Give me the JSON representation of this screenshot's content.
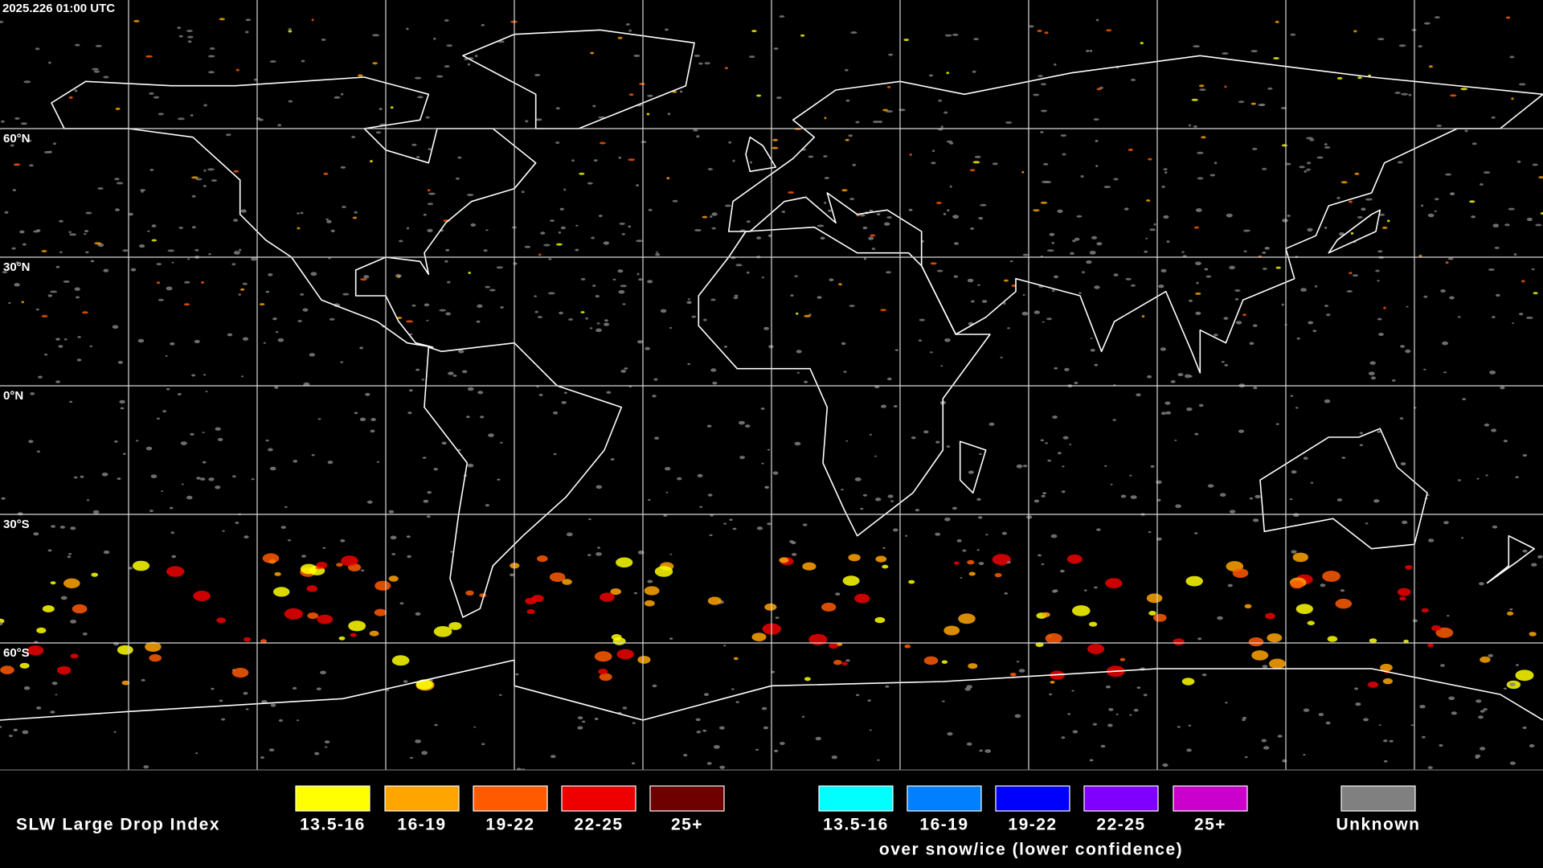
{
  "header": {
    "timestamp": "2025.226 01:00 UTC"
  },
  "map": {
    "lat_labels": [
      "60°N",
      "30°N",
      "0°N",
      "30°S",
      "60°S"
    ]
  },
  "legend": {
    "title": "SLW Large Drop Index",
    "main": [
      {
        "label": "13.5-16",
        "color": "#ffff00"
      },
      {
        "label": "16-19",
        "color": "#ffa500"
      },
      {
        "label": "19-22",
        "color": "#ff5a00"
      },
      {
        "label": "22-25",
        "color": "#ee0000"
      },
      {
        "label": "25+",
        "color": "#6e0000"
      }
    ],
    "snow": [
      {
        "label": "13.5-16",
        "color": "#00ffff"
      },
      {
        "label": "16-19",
        "color": "#0080ff"
      },
      {
        "label": "19-22",
        "color": "#0000ff"
      },
      {
        "label": "22-25",
        "color": "#8000ff"
      },
      {
        "label": "25+",
        "color": "#cc00cc"
      }
    ],
    "snow_caption": "over snow/ice (lower confidence)",
    "unknown": {
      "label": "Unknown",
      "color": "#808080"
    }
  }
}
